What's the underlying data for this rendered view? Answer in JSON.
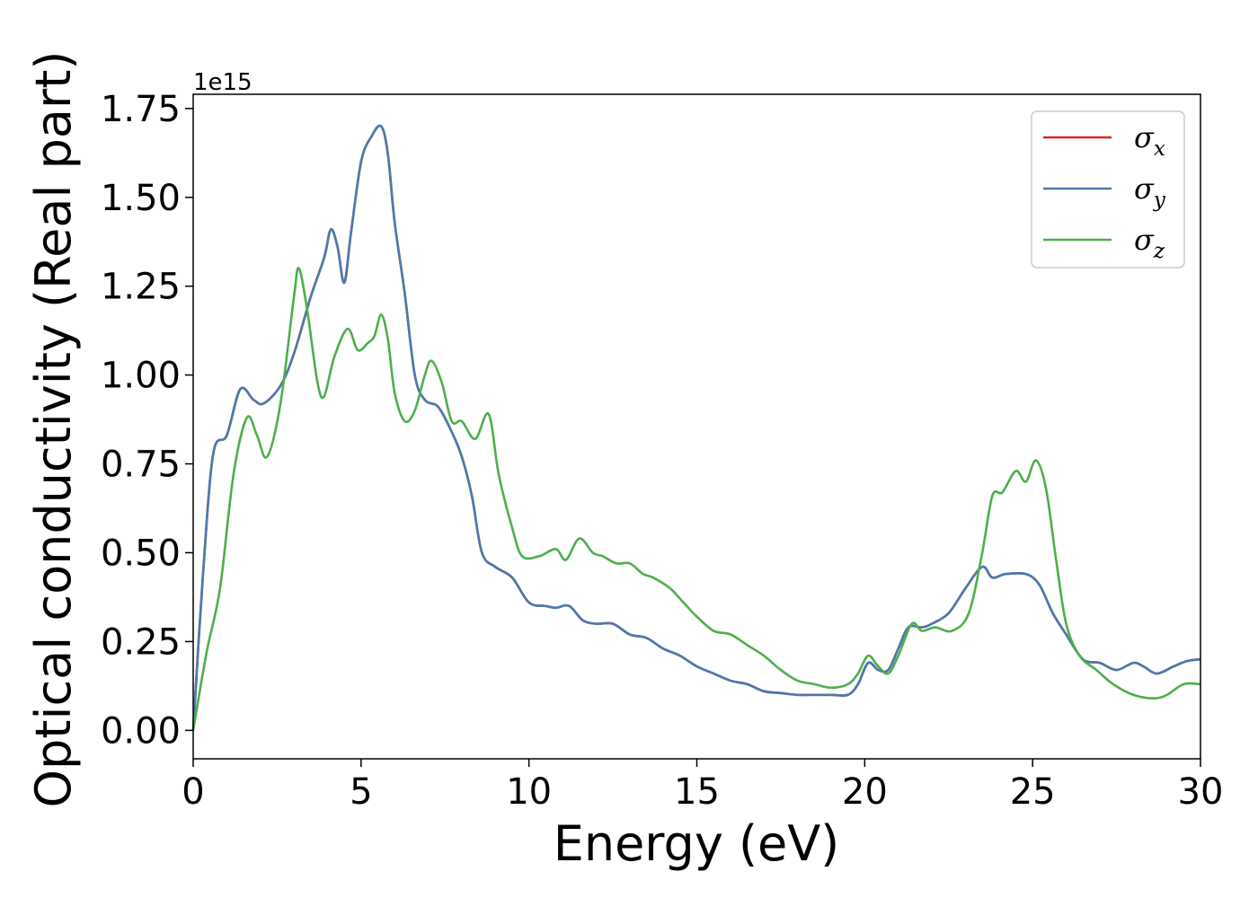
{
  "chart_data": {
    "type": "line",
    "xlabel": "Energy (eV)",
    "ylabel": "Optical conductivity (Real part)",
    "y_offset_label": "1e15",
    "y_scale": 1000000000000000.0,
    "xlim": [
      0,
      30
    ],
    "ylim": [
      -0.08,
      1.79
    ],
    "xticks": [
      0,
      5,
      10,
      15,
      20,
      25,
      30
    ],
    "xtick_labels": [
      "0",
      "5",
      "10",
      "15",
      "20",
      "25",
      "30"
    ],
    "yticks": [
      0.0,
      0.25,
      0.5,
      0.75,
      1.0,
      1.25,
      1.5,
      1.75
    ],
    "ytick_labels": [
      "0.00",
      "0.25",
      "0.50",
      "0.75",
      "1.00",
      "1.25",
      "1.50",
      "1.75"
    ],
    "grid": false,
    "legend_position": "top-right",
    "series": [
      {
        "name": "σ",
        "sub": "x",
        "color": "#d62728",
        "points": [
          [
            0,
            0
          ],
          [
            0.3,
            0.45
          ],
          [
            0.6,
            0.78
          ],
          [
            1.0,
            0.83
          ],
          [
            1.4,
            0.96
          ],
          [
            1.8,
            0.93
          ],
          [
            2.1,
            0.92
          ],
          [
            2.6,
            0.97
          ],
          [
            3.0,
            1.06
          ],
          [
            3.5,
            1.22
          ],
          [
            3.9,
            1.33
          ],
          [
            4.1,
            1.41
          ],
          [
            4.3,
            1.36
          ],
          [
            4.5,
            1.26
          ],
          [
            4.7,
            1.4
          ],
          [
            5.0,
            1.6
          ],
          [
            5.3,
            1.67
          ],
          [
            5.6,
            1.7
          ],
          [
            5.8,
            1.62
          ],
          [
            6.0,
            1.43
          ],
          [
            6.3,
            1.23
          ],
          [
            6.6,
            1.0
          ],
          [
            6.9,
            0.93
          ],
          [
            7.3,
            0.91
          ],
          [
            7.7,
            0.84
          ],
          [
            8.0,
            0.77
          ],
          [
            8.3,
            0.66
          ],
          [
            8.6,
            0.5
          ],
          [
            9.0,
            0.46
          ],
          [
            9.5,
            0.43
          ],
          [
            10.0,
            0.36
          ],
          [
            10.5,
            0.35
          ],
          [
            10.8,
            0.345
          ],
          [
            11.2,
            0.35
          ],
          [
            11.6,
            0.31
          ],
          [
            12.0,
            0.3
          ],
          [
            12.5,
            0.3
          ],
          [
            13.0,
            0.27
          ],
          [
            13.5,
            0.26
          ],
          [
            14.0,
            0.23
          ],
          [
            14.5,
            0.21
          ],
          [
            15.0,
            0.18
          ],
          [
            15.5,
            0.16
          ],
          [
            16.0,
            0.14
          ],
          [
            16.5,
            0.13
          ],
          [
            17.0,
            0.11
          ],
          [
            17.5,
            0.105
          ],
          [
            18.0,
            0.1
          ],
          [
            18.5,
            0.1
          ],
          [
            19.0,
            0.1
          ],
          [
            19.5,
            0.1
          ],
          [
            19.8,
            0.13
          ],
          [
            20.1,
            0.19
          ],
          [
            20.4,
            0.17
          ],
          [
            20.7,
            0.17
          ],
          [
            21.0,
            0.23
          ],
          [
            21.3,
            0.29
          ],
          [
            21.7,
            0.29
          ],
          [
            22.0,
            0.3
          ],
          [
            22.5,
            0.33
          ],
          [
            23.0,
            0.4
          ],
          [
            23.5,
            0.46
          ],
          [
            23.8,
            0.43
          ],
          [
            24.2,
            0.44
          ],
          [
            24.8,
            0.44
          ],
          [
            25.2,
            0.41
          ],
          [
            25.6,
            0.33
          ],
          [
            26.0,
            0.27
          ],
          [
            26.5,
            0.2
          ],
          [
            27.0,
            0.19
          ],
          [
            27.5,
            0.17
          ],
          [
            28.0,
            0.19
          ],
          [
            28.3,
            0.18
          ],
          [
            28.7,
            0.16
          ],
          [
            29.2,
            0.18
          ],
          [
            29.6,
            0.195
          ],
          [
            30.0,
            0.2
          ]
        ]
      },
      {
        "name": "σ",
        "sub": "y",
        "color": "#4a7aad",
        "points": [
          [
            0,
            0
          ],
          [
            0.3,
            0.45
          ],
          [
            0.6,
            0.78
          ],
          [
            1.0,
            0.83
          ],
          [
            1.4,
            0.96
          ],
          [
            1.8,
            0.93
          ],
          [
            2.1,
            0.92
          ],
          [
            2.6,
            0.97
          ],
          [
            3.0,
            1.06
          ],
          [
            3.5,
            1.22
          ],
          [
            3.9,
            1.33
          ],
          [
            4.1,
            1.41
          ],
          [
            4.3,
            1.36
          ],
          [
            4.5,
            1.26
          ],
          [
            4.7,
            1.4
          ],
          [
            5.0,
            1.6
          ],
          [
            5.3,
            1.67
          ],
          [
            5.6,
            1.7
          ],
          [
            5.8,
            1.62
          ],
          [
            6.0,
            1.43
          ],
          [
            6.3,
            1.23
          ],
          [
            6.6,
            1.0
          ],
          [
            6.9,
            0.93
          ],
          [
            7.3,
            0.91
          ],
          [
            7.7,
            0.84
          ],
          [
            8.0,
            0.77
          ],
          [
            8.3,
            0.66
          ],
          [
            8.6,
            0.5
          ],
          [
            9.0,
            0.46
          ],
          [
            9.5,
            0.43
          ],
          [
            10.0,
            0.36
          ],
          [
            10.5,
            0.35
          ],
          [
            10.8,
            0.345
          ],
          [
            11.2,
            0.35
          ],
          [
            11.6,
            0.31
          ],
          [
            12.0,
            0.3
          ],
          [
            12.5,
            0.3
          ],
          [
            13.0,
            0.27
          ],
          [
            13.5,
            0.26
          ],
          [
            14.0,
            0.23
          ],
          [
            14.5,
            0.21
          ],
          [
            15.0,
            0.18
          ],
          [
            15.5,
            0.16
          ],
          [
            16.0,
            0.14
          ],
          [
            16.5,
            0.13
          ],
          [
            17.0,
            0.11
          ],
          [
            17.5,
            0.105
          ],
          [
            18.0,
            0.1
          ],
          [
            18.5,
            0.1
          ],
          [
            19.0,
            0.1
          ],
          [
            19.5,
            0.1
          ],
          [
            19.8,
            0.13
          ],
          [
            20.1,
            0.19
          ],
          [
            20.4,
            0.17
          ],
          [
            20.7,
            0.17
          ],
          [
            21.0,
            0.23
          ],
          [
            21.3,
            0.29
          ],
          [
            21.7,
            0.29
          ],
          [
            22.0,
            0.3
          ],
          [
            22.5,
            0.33
          ],
          [
            23.0,
            0.4
          ],
          [
            23.5,
            0.46
          ],
          [
            23.8,
            0.43
          ],
          [
            24.2,
            0.44
          ],
          [
            24.8,
            0.44
          ],
          [
            25.2,
            0.41
          ],
          [
            25.6,
            0.33
          ],
          [
            26.0,
            0.27
          ],
          [
            26.5,
            0.2
          ],
          [
            27.0,
            0.19
          ],
          [
            27.5,
            0.17
          ],
          [
            28.0,
            0.19
          ],
          [
            28.3,
            0.18
          ],
          [
            28.7,
            0.16
          ],
          [
            29.2,
            0.18
          ],
          [
            29.6,
            0.195
          ],
          [
            30.0,
            0.2
          ]
        ]
      },
      {
        "name": "σ",
        "sub": "z",
        "color": "#4daf4a",
        "points": [
          [
            0,
            0
          ],
          [
            0.4,
            0.22
          ],
          [
            0.8,
            0.4
          ],
          [
            1.2,
            0.72
          ],
          [
            1.6,
            0.88
          ],
          [
            1.9,
            0.83
          ],
          [
            2.2,
            0.77
          ],
          [
            2.6,
            0.92
          ],
          [
            3.0,
            1.22
          ],
          [
            3.15,
            1.3
          ],
          [
            3.4,
            1.18
          ],
          [
            3.7,
            0.98
          ],
          [
            3.9,
            0.94
          ],
          [
            4.2,
            1.05
          ],
          [
            4.6,
            1.13
          ],
          [
            4.9,
            1.07
          ],
          [
            5.2,
            1.09
          ],
          [
            5.4,
            1.11
          ],
          [
            5.6,
            1.17
          ],
          [
            5.8,
            1.1
          ],
          [
            6.0,
            0.95
          ],
          [
            6.3,
            0.87
          ],
          [
            6.6,
            0.9
          ],
          [
            6.9,
            1.0
          ],
          [
            7.1,
            1.04
          ],
          [
            7.4,
            0.98
          ],
          [
            7.7,
            0.87
          ],
          [
            8.0,
            0.87
          ],
          [
            8.4,
            0.82
          ],
          [
            8.8,
            0.89
          ],
          [
            9.1,
            0.72
          ],
          [
            9.5,
            0.57
          ],
          [
            9.8,
            0.49
          ],
          [
            10.3,
            0.49
          ],
          [
            10.8,
            0.51
          ],
          [
            11.1,
            0.48
          ],
          [
            11.5,
            0.54
          ],
          [
            11.9,
            0.5
          ],
          [
            12.2,
            0.49
          ],
          [
            12.6,
            0.47
          ],
          [
            13.0,
            0.47
          ],
          [
            13.4,
            0.44
          ],
          [
            13.7,
            0.43
          ],
          [
            14.2,
            0.4
          ],
          [
            14.6,
            0.36
          ],
          [
            15.0,
            0.32
          ],
          [
            15.5,
            0.28
          ],
          [
            16.0,
            0.27
          ],
          [
            16.5,
            0.24
          ],
          [
            17.0,
            0.21
          ],
          [
            17.5,
            0.17
          ],
          [
            18.0,
            0.14
          ],
          [
            18.5,
            0.13
          ],
          [
            19.0,
            0.12
          ],
          [
            19.5,
            0.13
          ],
          [
            19.8,
            0.16
          ],
          [
            20.1,
            0.21
          ],
          [
            20.4,
            0.18
          ],
          [
            20.7,
            0.16
          ],
          [
            21.0,
            0.21
          ],
          [
            21.4,
            0.3
          ],
          [
            21.7,
            0.28
          ],
          [
            22.1,
            0.29
          ],
          [
            22.6,
            0.28
          ],
          [
            23.1,
            0.33
          ],
          [
            23.5,
            0.5
          ],
          [
            23.8,
            0.66
          ],
          [
            24.1,
            0.67
          ],
          [
            24.5,
            0.73
          ],
          [
            24.8,
            0.7
          ],
          [
            25.1,
            0.76
          ],
          [
            25.4,
            0.68
          ],
          [
            25.7,
            0.48
          ],
          [
            26.0,
            0.3
          ],
          [
            26.4,
            0.21
          ],
          [
            26.9,
            0.17
          ],
          [
            27.4,
            0.13
          ],
          [
            28.0,
            0.1
          ],
          [
            28.6,
            0.09
          ],
          [
            29.0,
            0.1
          ],
          [
            29.5,
            0.13
          ],
          [
            30.0,
            0.13
          ]
        ]
      }
    ]
  }
}
